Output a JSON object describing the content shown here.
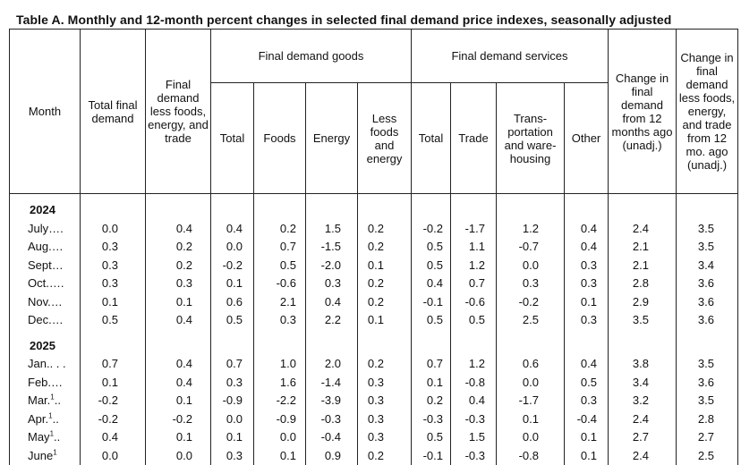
{
  "title": "Table A. Monthly and 12-month percent changes in selected final demand price indexes, seasonally adjusted",
  "headers": {
    "month": "Month",
    "total_final_demand": "Total final demand",
    "final_demand_less": "Final demand less foods, energy, and trade",
    "goods_group": "Final demand goods",
    "services_group": "Final demand services",
    "goods_total": "Total",
    "goods_foods": "Foods",
    "goods_energy": "Energy",
    "goods_less": "Less foods and energy",
    "services_total": "Total",
    "services_trade": "Trade",
    "services_transport": "Trans-portation and ware-housing",
    "services_other": "Other",
    "change_12mo": "Change in final demand from 12 months ago (unadj.)",
    "change_12mo_less": "Change in final demand less foods, energy, and trade from 12 mo. ago (unadj.)"
  },
  "years": [
    {
      "year": "2024",
      "rows": [
        {
          "month": "July….",
          "sup": "",
          "values": [
            "0.0",
            "0.4",
            "0.4",
            "0.2",
            "1.5",
            "0.2",
            "-0.2",
            "-1.7",
            "1.2",
            "0.4",
            "2.4",
            "3.5"
          ]
        },
        {
          "month": "Aug.…",
          "sup": "",
          "values": [
            "0.3",
            "0.2",
            "0.0",
            "0.7",
            "-1.5",
            "0.2",
            "0.5",
            "1.1",
            "-0.7",
            "0.4",
            "2.1",
            "3.5"
          ]
        },
        {
          "month": "Sept…",
          "sup": "",
          "values": [
            "0.3",
            "0.2",
            "-0.2",
            "0.5",
            "-2.0",
            "0.1",
            "0.5",
            "1.2",
            "0.0",
            "0.3",
            "2.1",
            "3.4"
          ]
        },
        {
          "month": "Oct.….",
          "sup": "",
          "values": [
            "0.3",
            "0.3",
            "0.1",
            "-0.6",
            "0.3",
            "0.2",
            "0.4",
            "0.7",
            "0.3",
            "0.3",
            "2.8",
            "3.6"
          ]
        },
        {
          "month": "Nov.…",
          "sup": "",
          "values": [
            "0.1",
            "0.1",
            "0.6",
            "2.1",
            "0.4",
            "0.2",
            "-0.1",
            "-0.6",
            "-0.2",
            "0.1",
            "2.9",
            "3.6"
          ]
        },
        {
          "month": "Dec.…",
          "sup": "",
          "values": [
            "0.5",
            "0.4",
            "0.5",
            "0.3",
            "2.2",
            "0.1",
            "0.5",
            "0.5",
            "2.5",
            "0.3",
            "3.5",
            "3.6"
          ]
        }
      ]
    },
    {
      "year": "2025",
      "rows": [
        {
          "month": "Jan.. . .",
          "sup": "",
          "values": [
            "0.7",
            "0.4",
            "0.7",
            "1.0",
            "2.0",
            "0.2",
            "0.7",
            "1.2",
            "0.6",
            "0.4",
            "3.8",
            "3.5"
          ]
        },
        {
          "month": "Feb.…",
          "sup": "",
          "values": [
            "0.1",
            "0.4",
            "0.3",
            "1.6",
            "-1.4",
            "0.3",
            "0.1",
            "-0.8",
            "0.0",
            "0.5",
            "3.4",
            "3.6"
          ]
        },
        {
          "month": "Mar.",
          "sup": "1",
          "tail": "..",
          "values": [
            "-0.2",
            "0.1",
            "-0.9",
            "-2.2",
            "-3.9",
            "0.3",
            "0.2",
            "0.4",
            "-1.7",
            "0.3",
            "3.2",
            "3.5"
          ]
        },
        {
          "month": "Apr.",
          "sup": "1",
          "tail": "..",
          "values": [
            "-0.2",
            "-0.2",
            "0.0",
            "-0.9",
            "-0.3",
            "0.3",
            "-0.3",
            "-0.3",
            "0.1",
            "-0.4",
            "2.4",
            "2.8"
          ]
        },
        {
          "month": "May",
          "sup": "1",
          "tail": "..",
          "values": [
            "0.4",
            "0.1",
            "0.1",
            "0.0",
            "-0.4",
            "0.3",
            "0.5",
            "1.5",
            "0.0",
            "0.1",
            "2.7",
            "2.7"
          ]
        },
        {
          "month": "June",
          "sup": "1",
          "tail": "",
          "values": [
            "0.0",
            "0.0",
            "0.3",
            "0.1",
            "0.9",
            "0.2",
            "-0.1",
            "-0.3",
            "-0.8",
            "0.1",
            "2.4",
            "2.5"
          ]
        }
      ]
    }
  ]
}
